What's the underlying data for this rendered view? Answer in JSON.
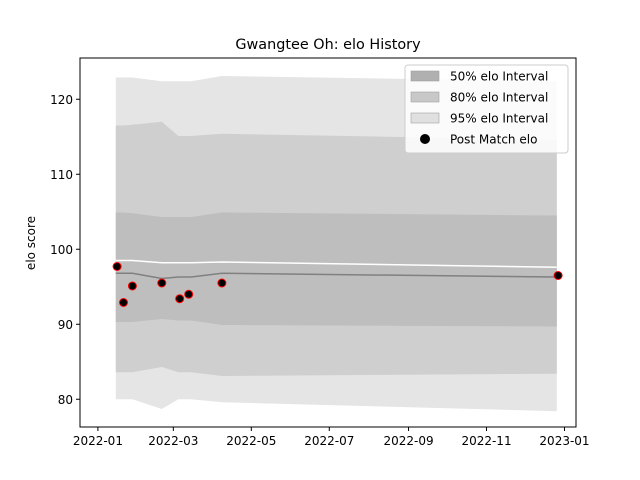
{
  "chart_data": {
    "type": "line",
    "title": "Gwangtee Oh: elo History",
    "xlabel": "",
    "ylabel": "elo score",
    "xlim": [
      "2021-12-18",
      "2023-01-10"
    ],
    "ylim": [
      76.3,
      125.5
    ],
    "x_ticks": [
      "2022-01",
      "2022-03",
      "2022-05",
      "2022-07",
      "2022-09",
      "2022-11",
      "2023-01"
    ],
    "y_ticks": [
      80,
      90,
      100,
      110,
      120
    ],
    "grid": false,
    "legend_position": "top-right",
    "dates": [
      "2022-01-15",
      "2022-01-21",
      "2022-01-28",
      "2022-02-20",
      "2022-03-05",
      "2022-03-15",
      "2022-04-08",
      "2022-12-26"
    ],
    "series": [
      {
        "name": "95% elo Interval",
        "kind": "band",
        "color": "#e5e5e5",
        "lower": [
          80.0,
          80.0,
          80.0,
          78.7,
          80.0,
          80.0,
          79.6,
          78.4
        ],
        "upper": [
          122.9,
          122.9,
          122.9,
          122.4,
          122.4,
          122.4,
          123.1,
          122.4
        ]
      },
      {
        "name": "80% elo Interval",
        "kind": "band",
        "color": "#cfcfcf",
        "lower": [
          83.6,
          83.6,
          83.6,
          84.3,
          83.6,
          83.6,
          83.1,
          83.4
        ],
        "upper": [
          116.5,
          116.5,
          116.6,
          117.0,
          115.1,
          115.1,
          115.4,
          114.6
        ]
      },
      {
        "name": "50% elo Interval",
        "kind": "band",
        "color": "#bebebe",
        "lower": [
          90.3,
          90.3,
          90.3,
          90.7,
          90.5,
          90.5,
          89.9,
          89.7
        ],
        "upper": [
          104.9,
          104.9,
          104.8,
          104.3,
          104.3,
          104.3,
          104.9,
          104.5
        ]
      },
      {
        "name": "",
        "kind": "line",
        "color": "#ffffff",
        "values": [
          98.5,
          98.5,
          98.5,
          98.2,
          98.2,
          98.2,
          98.3,
          97.6
        ]
      },
      {
        "name": "",
        "kind": "line",
        "color": "#808080",
        "values": [
          96.8,
          96.8,
          96.8,
          96.1,
          96.3,
          96.3,
          96.8,
          96.3
        ]
      },
      {
        "name": "Post Match elo",
        "kind": "points",
        "color": "#000000",
        "edgecolor": "#ff0000",
        "x": [
          "2022-01-16",
          "2022-01-21",
          "2022-01-28",
          "2022-02-20",
          "2022-03-06",
          "2022-03-13",
          "2022-04-08",
          "2022-12-27"
        ],
        "values": [
          97.7,
          92.9,
          95.1,
          95.5,
          93.4,
          94.0,
          95.5,
          96.5
        ]
      }
    ],
    "legend": [
      {
        "label": "50% elo Interval",
        "swatch": "patch",
        "color": "#b0b0b0"
      },
      {
        "label": "80% elo Interval",
        "swatch": "patch",
        "color": "#c8c8c8"
      },
      {
        "label": "95% elo Interval",
        "swatch": "patch",
        "color": "#e0e0e0"
      },
      {
        "label": "Post Match elo",
        "swatch": "marker",
        "color": "#000000"
      }
    ]
  }
}
